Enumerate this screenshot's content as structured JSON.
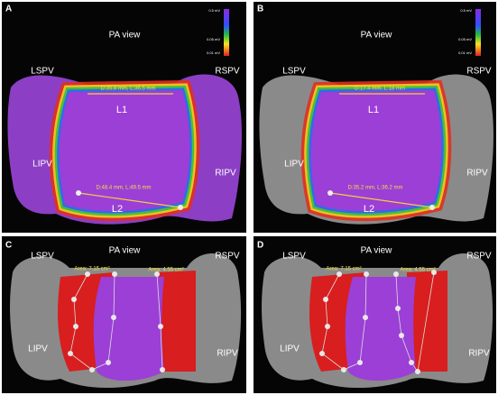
{
  "panels": [
    {
      "letter": "A",
      "view": "PA view",
      "veins": [
        "LSPV",
        "RSPV",
        "LIPV",
        "RIPV"
      ],
      "lines": [
        "L1",
        "L2"
      ],
      "measurements": [
        "D:35.8 mm, L:36.5 mm",
        "D:48.4 mm, L:49.5 mm"
      ],
      "scale": [
        "0.5 mV",
        "0.05 mV",
        "0.01 mV"
      ]
    },
    {
      "letter": "B",
      "view": "PA view",
      "veins": [
        "LSPV",
        "RSPV",
        "LIPV",
        "RIPV"
      ],
      "lines": [
        "L1",
        "L2"
      ],
      "measurements": [
        "D:17.4 mm, L:18 mm",
        "D:35.2 mm, L:36.2 mm"
      ],
      "scale": [
        "0.5 mV",
        "0.05 mV",
        "0.01 mV"
      ]
    },
    {
      "letter": "C",
      "view": "PA view",
      "veins": [
        "LSPV",
        "RSPV",
        "LIPV",
        "RIPV"
      ],
      "areas": [
        "Area: 7.15 cm²",
        "Area: 4.55 cm²"
      ]
    },
    {
      "letter": "D",
      "view": "PA view",
      "veins": [
        "LSPV",
        "RSPV",
        "LIPV",
        "RIPV"
      ],
      "areas": [
        "Area: 7.15 cm²",
        "Area: 4.55 cm²"
      ]
    }
  ]
}
